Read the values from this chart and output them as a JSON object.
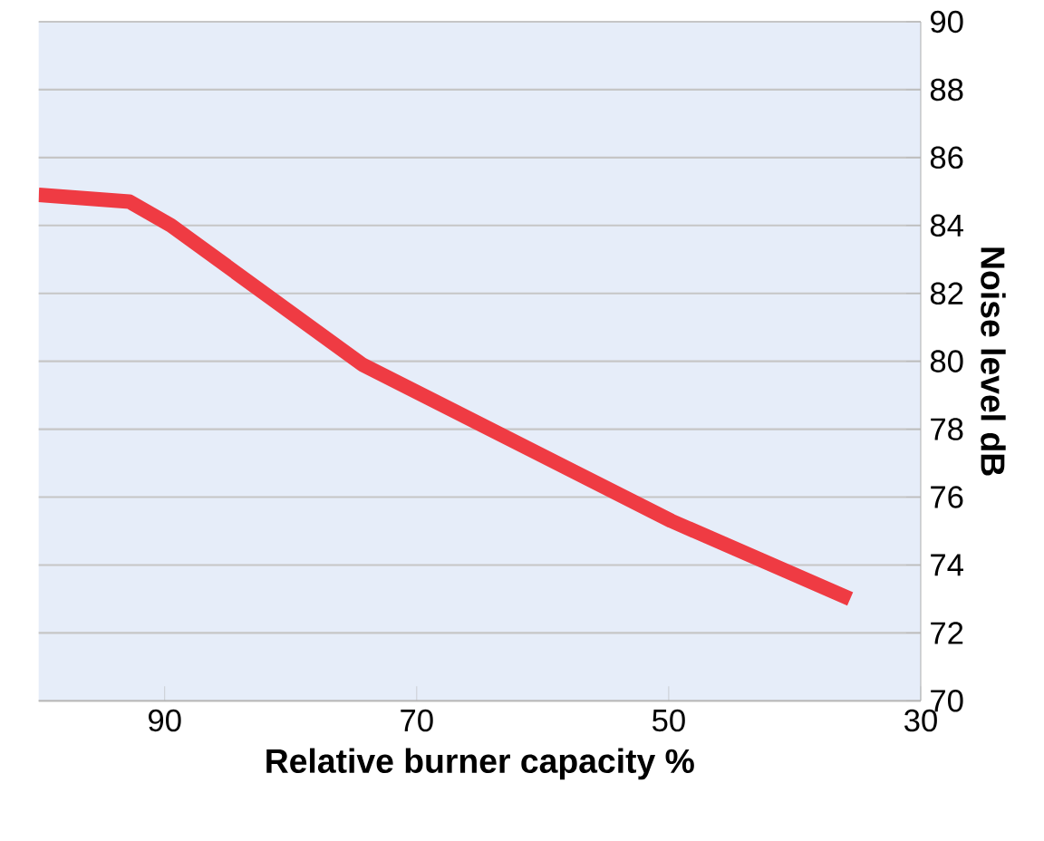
{
  "chart_data": {
    "type": "line",
    "xlabel": "Relative burner capacity %",
    "ylabel": "Noise level dB",
    "x": [
      100,
      92.8,
      89.5,
      74.3,
      49.8,
      35.6
    ],
    "series": [
      {
        "color": "#ef3b43",
        "values": [
          84.9,
          84.7,
          84.0,
          79.9,
          75.3,
          73.0
        ]
      }
    ],
    "xlim": [
      100,
      30
    ],
    "xticks": [
      90,
      70,
      50,
      30
    ],
    "ylim": [
      70,
      90
    ],
    "yticks": [
      70,
      72,
      74,
      76,
      78,
      80,
      82,
      84,
      86,
      88,
      90
    ],
    "grid": "y",
    "marker": "none",
    "line_style": "solid"
  }
}
